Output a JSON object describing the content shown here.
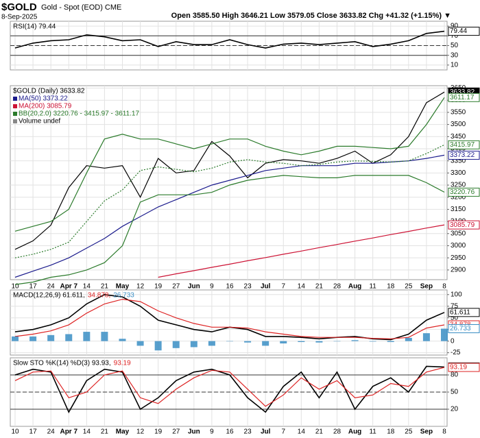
{
  "header": {
    "symbol": "$GOLD",
    "name": "Gold - Spot (EOD) CME",
    "date": "8-Sep-2025",
    "quote": "Open 3585.50  High 3646.21  Low 3579.05  Close 3633.82  Chg +41.32 (+1.15%) ▼"
  },
  "chart_data": [
    {
      "type": "line",
      "ylim": [
        0,
        100
      ],
      "yticks": [
        10,
        30,
        50,
        70,
        90
      ],
      "ref_lines": [
        {
          "value": 70,
          "style": "solid"
        },
        {
          "value": 50,
          "style": "dashed"
        },
        {
          "value": 30,
          "style": "solid"
        }
      ],
      "series": [
        {
          "name": "RSI(14) 79.44",
          "color": "#000000",
          "values": [
            45,
            55,
            60,
            62,
            72,
            68,
            60,
            62,
            48,
            58,
            52,
            52,
            62,
            52,
            45,
            53,
            55,
            52,
            55,
            58,
            48,
            53,
            60,
            75,
            79.44
          ]
        }
      ]
    },
    {
      "type": "line",
      "title": "$GOLD (Daily) 3633.82",
      "volume_label": "Volume undef",
      "ylim": [
        2860,
        3660
      ],
      "yticks": [
        2900,
        2950,
        3000,
        3050,
        3100,
        3150,
        3200,
        3250,
        3300,
        3350,
        3400,
        3450,
        3500,
        3550,
        3600,
        3650
      ],
      "categories": [
        "10",
        "17",
        "24",
        "Apr 7",
        "14",
        "21",
        "May",
        "12",
        "19",
        "27",
        "Jun",
        "9",
        "16",
        "23",
        "Jul",
        "7",
        "14",
        "21",
        "28",
        "Aug",
        "11",
        "18",
        "25",
        "Sep",
        "8"
      ],
      "series": [
        {
          "name": "$GOLD",
          "color": "#000000",
          "values": [
            2985,
            3020,
            3085,
            3240,
            3330,
            3320,
            3330,
            3200,
            3360,
            3300,
            3310,
            3430,
            3370,
            3280,
            3340,
            3355,
            3350,
            3340,
            3360,
            3390,
            3340,
            3375,
            3450,
            3590,
            3633.82
          ]
        },
        {
          "name": "MA(50) 3373.22",
          "color": "#1a1a8c",
          "values": [
            2870,
            2895,
            2920,
            2950,
            2990,
            3030,
            3080,
            3120,
            3160,
            3190,
            3220,
            3250,
            3270,
            3290,
            3310,
            3320,
            3330,
            3330,
            3330,
            3340,
            3340,
            3345,
            3350,
            3360,
            3373.22
          ]
        },
        {
          "name": "MA(200) 3085.79",
          "color": "#cc1133",
          "values": [
            null,
            null,
            null,
            null,
            null,
            null,
            null,
            null,
            2870,
            2884,
            2897,
            2911,
            2924,
            2938,
            2951,
            2965,
            2978,
            2992,
            3005,
            3019,
            3032,
            3046,
            3059,
            3073,
            3085.79
          ]
        },
        {
          "name": "BB(20,2.0) 3220.76 - 3415.97 - 3611.17",
          "color": "#2a7a2a",
          "values": [
            3060,
            3080,
            3100,
            3150,
            3300,
            3440,
            3460,
            3440,
            3440,
            3420,
            3400,
            3420,
            3440,
            3440,
            3410,
            3390,
            3375,
            3390,
            3410,
            3410,
            3405,
            3400,
            3410,
            3500,
            3611.17
          ]
        },
        {
          "color": "#2a7a2a",
          "dashed": true,
          "values": [
            2950,
            2965,
            2985,
            3015,
            3100,
            3185,
            3230,
            3310,
            3325,
            3315,
            3305,
            3320,
            3345,
            3355,
            3345,
            3340,
            3330,
            3335,
            3345,
            3350,
            3348,
            3345,
            3350,
            3380,
            3415.97
          ]
        },
        {
          "color": "#2a7a2a",
          "values": [
            2840,
            2850,
            2870,
            2880,
            2900,
            2930,
            3000,
            3180,
            3210,
            3210,
            3210,
            3220,
            3250,
            3270,
            3280,
            3290,
            3285,
            3280,
            3280,
            3290,
            3290,
            3290,
            3290,
            3260,
            3220.76
          ]
        }
      ]
    },
    {
      "type": "line",
      "ylim": [
        -30,
        110
      ],
      "yticks": [
        -25,
        0,
        25,
        50,
        75,
        100
      ],
      "series": [
        {
          "name": "MACD(12,26,9) 61.611,",
          "color": "#000000",
          "values": [
            20,
            25,
            35,
            50,
            80,
            100,
            95,
            75,
            45,
            35,
            25,
            20,
            30,
            25,
            10,
            10,
            8,
            5,
            8,
            10,
            5,
            3,
            15,
            45,
            61.611
          ]
        },
        {
          "name": "34.878,",
          "color": "#dd2222",
          "values": [
            10,
            15,
            22,
            35,
            60,
            80,
            90,
            85,
            65,
            50,
            38,
            30,
            30,
            28,
            20,
            15,
            10,
            8,
            8,
            8,
            6,
            5,
            8,
            28,
            34.878
          ]
        },
        {
          "name": "26.733",
          "color": "#3a8ec4",
          "histogram": true,
          "values": [
            10,
            10,
            13,
            15,
            20,
            20,
            5,
            -10,
            -20,
            -15,
            -13,
            -10,
            0,
            -3,
            -10,
            -5,
            -2,
            -3,
            0,
            2,
            -1,
            -2,
            7,
            17,
            26.733
          ]
        }
      ]
    },
    {
      "type": "line",
      "ylim": [
        -10,
        110
      ],
      "yticks": [
        20,
        50,
        80
      ],
      "ref_lines": [
        {
          "value": 80,
          "style": "solid"
        },
        {
          "value": 50,
          "style": "dashed"
        },
        {
          "value": 20,
          "style": "solid"
        }
      ],
      "categories": [
        "10",
        "17",
        "24",
        "Apr 7",
        "14",
        "21",
        "May",
        "12",
        "19",
        "27",
        "Jun",
        "9",
        "16",
        "23",
        "Jul",
        "7",
        "14",
        "21",
        "28",
        "Aug",
        "11",
        "18",
        "25",
        "Sep",
        "8"
      ],
      "series": [
        {
          "name": "Slow STO %K(14) %D(3) 93.93,",
          "color": "#000000",
          "values": [
            80,
            90,
            85,
            15,
            70,
            90,
            85,
            20,
            40,
            70,
            85,
            90,
            80,
            40,
            15,
            60,
            85,
            40,
            85,
            20,
            60,
            75,
            50,
            95,
            93.93
          ]
        },
        {
          "name": "93.19",
          "color": "#dd2222",
          "values": [
            70,
            85,
            87,
            40,
            50,
            80,
            87,
            40,
            30,
            55,
            75,
            88,
            85,
            55,
            25,
            45,
            75,
            55,
            70,
            40,
            45,
            65,
            60,
            85,
            93.19
          ]
        }
      ]
    }
  ]
}
